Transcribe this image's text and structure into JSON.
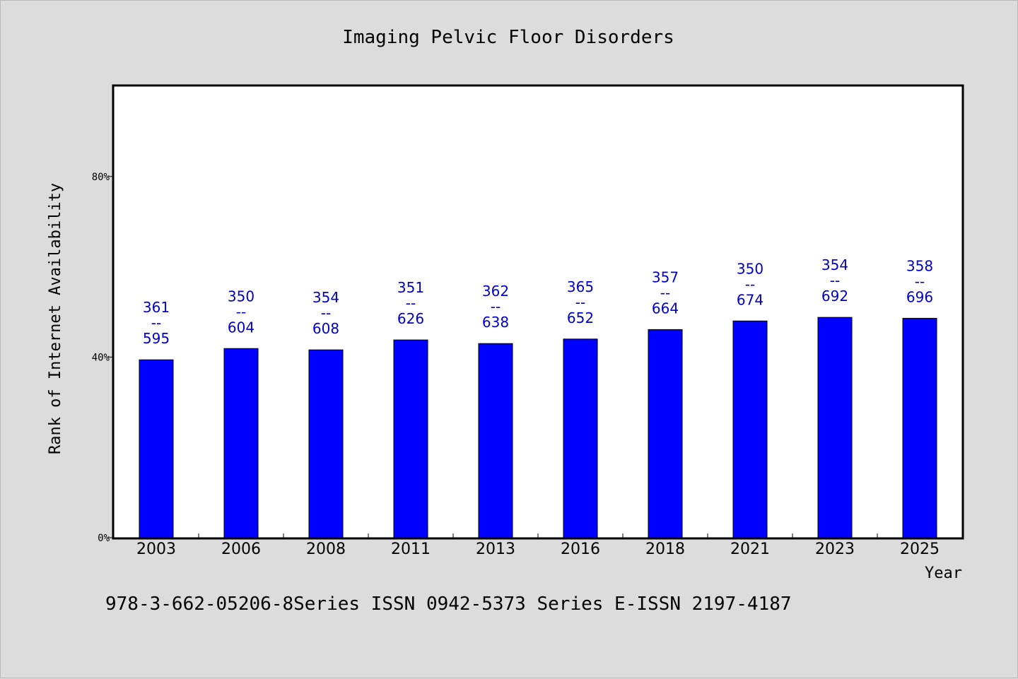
{
  "chart_data": {
    "type": "bar",
    "title": "Imaging Pelvic Floor Disorders",
    "xlabel": "Year",
    "ylabel": "Rank of Internet Availability",
    "categories": [
      "2003",
      "2006",
      "2008",
      "2011",
      "2013",
      "2016",
      "2018",
      "2021",
      "2023",
      "2025"
    ],
    "values": [
      0.394,
      0.419,
      0.416,
      0.438,
      0.43,
      0.44,
      0.461,
      0.48,
      0.488,
      0.486
    ],
    "bar_labels": [
      {
        "top": "361",
        "mid": "--",
        "bottom": "595"
      },
      {
        "top": "350",
        "mid": "--",
        "bottom": "604"
      },
      {
        "top": "354",
        "mid": "--",
        "bottom": "608"
      },
      {
        "top": "351",
        "mid": "--",
        "bottom": "626"
      },
      {
        "top": "362",
        "mid": "--",
        "bottom": "638"
      },
      {
        "top": "365",
        "mid": "--",
        "bottom": "652"
      },
      {
        "top": "357",
        "mid": "--",
        "bottom": "664"
      },
      {
        "top": "350",
        "mid": "--",
        "bottom": "674"
      },
      {
        "top": "354",
        "mid": "--",
        "bottom": "692"
      },
      {
        "top": "358",
        "mid": "--",
        "bottom": "696"
      }
    ],
    "yticks": [
      {
        "value": 0,
        "label": "0%"
      },
      {
        "value": 0.4,
        "label": "40%"
      },
      {
        "value": 0.8,
        "label": "80%"
      }
    ],
    "ylim": [
      0,
      1
    ],
    "grid": false,
    "colors": {
      "bar": "#0000ff",
      "bar_label": "#0000cc",
      "background": "#dcdcdc",
      "plot_background": "#ffffff"
    }
  },
  "footer": "978-3-662-05206-8Series ISSN 0942-5373 Series E-ISSN 2197-4187"
}
